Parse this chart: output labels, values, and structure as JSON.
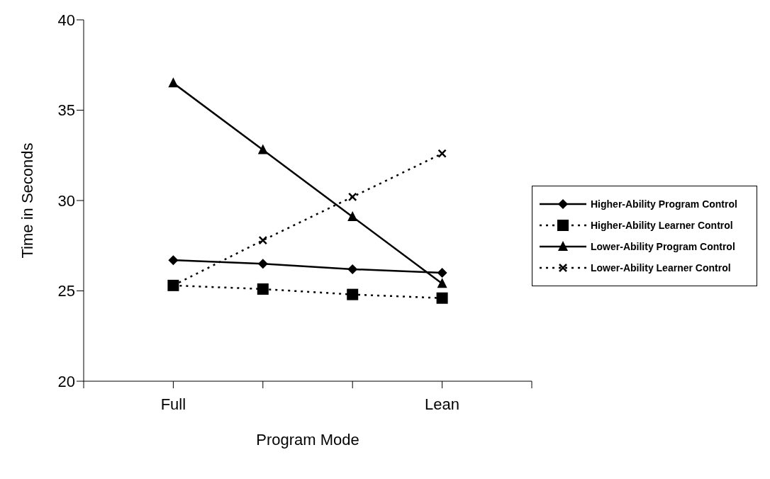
{
  "chart_data": {
    "type": "line",
    "xlabel": "Program Mode",
    "ylabel": "Time in Seconds",
    "categories": [
      "Full",
      null,
      null,
      "Lean"
    ],
    "ylim": [
      20,
      40
    ],
    "yticks": [
      20,
      25,
      30,
      35,
      40
    ],
    "grid": false,
    "legend": "right",
    "series": [
      {
        "name": "Higher-Ability Program Control",
        "color": "#000000",
        "marker": "diamond",
        "line_style": "solid",
        "values": [
          26.7,
          26.5,
          26.2,
          26.0
        ]
      },
      {
        "name": "Higher-Ability Learner Control",
        "color": "#000000",
        "marker": "square",
        "line_style": "dotted",
        "values": [
          25.3,
          25.1,
          24.8,
          24.6
        ]
      },
      {
        "name": "Lower-Ability Program Control",
        "color": "#000000",
        "marker": "triangle",
        "line_style": "solid",
        "values": [
          36.5,
          32.8,
          29.1,
          25.4
        ]
      },
      {
        "name": "Lower-Ability Learner Control",
        "color": "#000000",
        "marker": "cross",
        "line_style": "dotted",
        "values": [
          25.3,
          27.8,
          30.2,
          32.6
        ]
      }
    ]
  }
}
